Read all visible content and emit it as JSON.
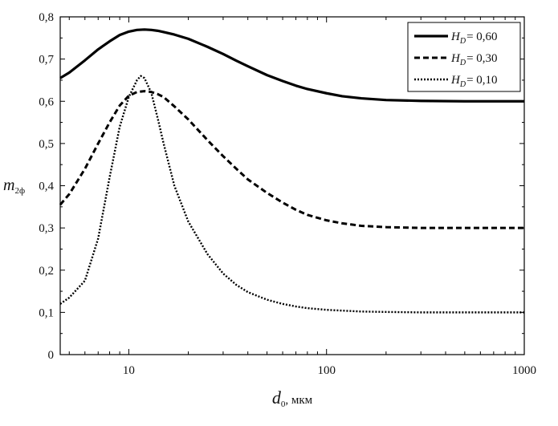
{
  "chart_data": {
    "type": "line",
    "xlabel": {
      "main": "d",
      "sub": "0",
      "suffix": ", мкм"
    },
    "ylabel": {
      "main": "m",
      "sub": "2ф"
    },
    "xscale": "log",
    "xlim": [
      4.5,
      1000
    ],
    "ylim": [
      0,
      0.8
    ],
    "xticks": [
      {
        "value": 10,
        "label": "10"
      },
      {
        "value": 100,
        "label": "100"
      },
      {
        "value": 1000,
        "label": "1000"
      }
    ],
    "yticks": [
      {
        "value": 0,
        "label": "0"
      },
      {
        "value": 0.1,
        "label": "0,1"
      },
      {
        "value": 0.2,
        "label": "0,2"
      },
      {
        "value": 0.3,
        "label": "0,3"
      },
      {
        "value": 0.4,
        "label": "0,4"
      },
      {
        "value": 0.5,
        "label": "0,5"
      },
      {
        "value": 0.6,
        "label": "0,6"
      },
      {
        "value": 0.7,
        "label": "0,7"
      },
      {
        "value": 0.8,
        "label": "0,8"
      }
    ],
    "grid": false,
    "legend_position": "top-right",
    "series": [
      {
        "name": "H_D = 0,60",
        "legend": {
          "main": "H",
          "sub": "D",
          "value": "= 0,60"
        },
        "style": "solid",
        "color": "#000000",
        "points": [
          [
            4.5,
            0.655
          ],
          [
            5,
            0.668
          ],
          [
            6,
            0.697
          ],
          [
            7,
            0.723
          ],
          [
            8,
            0.742
          ],
          [
            9,
            0.757
          ],
          [
            10,
            0.765
          ],
          [
            11,
            0.769
          ],
          [
            12,
            0.77
          ],
          [
            13,
            0.769
          ],
          [
            14,
            0.767
          ],
          [
            15,
            0.764
          ],
          [
            17,
            0.758
          ],
          [
            20,
            0.748
          ],
          [
            25,
            0.729
          ],
          [
            30,
            0.712
          ],
          [
            35,
            0.696
          ],
          [
            40,
            0.683
          ],
          [
            50,
            0.662
          ],
          [
            60,
            0.648
          ],
          [
            70,
            0.637
          ],
          [
            80,
            0.629
          ],
          [
            100,
            0.619
          ],
          [
            120,
            0.612
          ],
          [
            150,
            0.607
          ],
          [
            200,
            0.603
          ],
          [
            300,
            0.601
          ],
          [
            500,
            0.6
          ],
          [
            1000,
            0.6
          ]
        ]
      },
      {
        "name": "H_D = 0,30",
        "legend": {
          "main": "H",
          "sub": "D",
          "value": "= 0,30"
        },
        "style": "dashed",
        "color": "#000000",
        "points": [
          [
            4.5,
            0.355
          ],
          [
            5,
            0.38
          ],
          [
            6,
            0.44
          ],
          [
            7,
            0.5
          ],
          [
            8,
            0.55
          ],
          [
            9,
            0.59
          ],
          [
            10,
            0.613
          ],
          [
            11,
            0.622
          ],
          [
            12,
            0.624
          ],
          [
            13,
            0.622
          ],
          [
            14,
            0.617
          ],
          [
            15,
            0.61
          ],
          [
            17,
            0.588
          ],
          [
            20,
            0.557
          ],
          [
            25,
            0.508
          ],
          [
            30,
            0.47
          ],
          [
            35,
            0.44
          ],
          [
            40,
            0.415
          ],
          [
            50,
            0.383
          ],
          [
            60,
            0.36
          ],
          [
            70,
            0.343
          ],
          [
            80,
            0.331
          ],
          [
            100,
            0.318
          ],
          [
            120,
            0.311
          ],
          [
            150,
            0.305
          ],
          [
            200,
            0.302
          ],
          [
            300,
            0.3
          ],
          [
            500,
            0.3
          ],
          [
            1000,
            0.3
          ]
        ]
      },
      {
        "name": "H_D = 0,10",
        "legend": {
          "main": "H",
          "sub": "D",
          "value": "= 0,10"
        },
        "style": "dotted",
        "color": "#000000",
        "points": [
          [
            4.5,
            0.12
          ],
          [
            5,
            0.135
          ],
          [
            6,
            0.175
          ],
          [
            7,
            0.275
          ],
          [
            8,
            0.42
          ],
          [
            9,
            0.54
          ],
          [
            10,
            0.61
          ],
          [
            11,
            0.65
          ],
          [
            11.5,
            0.66
          ],
          [
            12,
            0.655
          ],
          [
            13,
            0.62
          ],
          [
            14,
            0.56
          ],
          [
            15,
            0.5
          ],
          [
            17,
            0.4
          ],
          [
            20,
            0.315
          ],
          [
            25,
            0.238
          ],
          [
            30,
            0.192
          ],
          [
            35,
            0.165
          ],
          [
            40,
            0.148
          ],
          [
            50,
            0.13
          ],
          [
            60,
            0.12
          ],
          [
            70,
            0.114
          ],
          [
            80,
            0.11
          ],
          [
            100,
            0.106
          ],
          [
            150,
            0.102
          ],
          [
            200,
            0.101
          ],
          [
            300,
            0.1
          ],
          [
            500,
            0.1
          ],
          [
            1000,
            0.1
          ]
        ]
      }
    ]
  }
}
